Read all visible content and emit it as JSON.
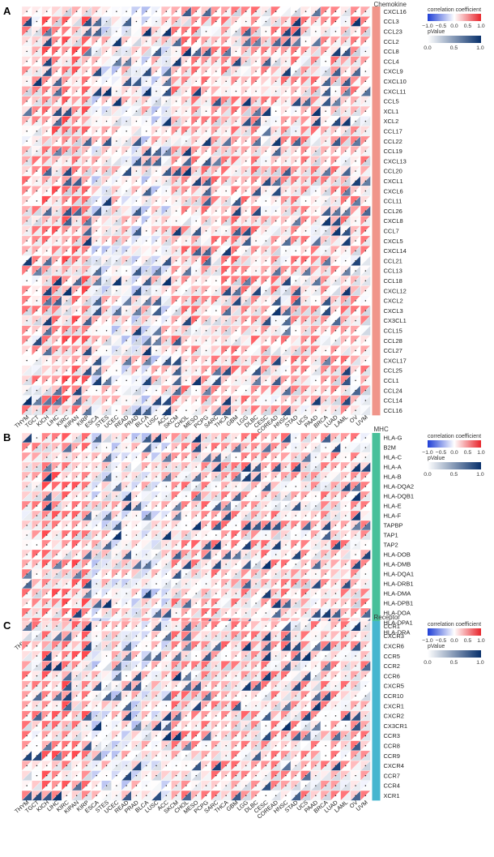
{
  "cancers": [
    "THYM",
    "TGCT",
    "KICH",
    "LIHC",
    "KIRC",
    "KIPAN",
    "KIRP",
    "ESCA",
    "STES",
    "UCEC",
    "READ",
    "PRAD",
    "BLCA",
    "LUSC",
    "ACC",
    "SKCM",
    "CHOL",
    "MESO",
    "PCPG",
    "SARC",
    "THCA",
    "GBM",
    "LGG",
    "DLBC",
    "CESC",
    "COREAD",
    "HNSC",
    "STAD",
    "UCS",
    "PAAD",
    "BRCA",
    "LUAD",
    "LAML",
    "OV",
    "UVM"
  ],
  "legend": {
    "corr_title": "correlation coefficient",
    "corr_ticks": [
      "−1.0",
      "−0.5",
      "0.0",
      "0.5",
      "1.0"
    ],
    "p_title": "pValue",
    "p_ticks": [
      "0.0",
      "0.5",
      "1.0"
    ]
  },
  "colors": {
    "neg": "#1f3fd6",
    "pos": "#e8242b",
    "p_high": "#08306b",
    "chemokine_bar": "#f0958a",
    "mhc_bar": "#48c09a",
    "receptor_bar": "#46b6cf"
  },
  "chart_data": [
    {
      "type": "heatmap",
      "panel": "A",
      "group": "Chemokine",
      "rows": [
        "CXCL16",
        "CCL3",
        "CCL23",
        "CCL2",
        "CCL8",
        "CCL4",
        "CXCL9",
        "CXCL10",
        "CXCL11",
        "CCL5",
        "XCL1",
        "XCL2",
        "CCL17",
        "CCL22",
        "CCL19",
        "CXCL13",
        "CCL20",
        "CXCL1",
        "CXCL6",
        "CCL11",
        "CCL26",
        "CXCL8",
        "CCL7",
        "CXCL5",
        "CXCL14",
        "CCL21",
        "CCL13",
        "CCL18",
        "CXCL12",
        "CXCL2",
        "CXCL3",
        "CX3CL1",
        "CCL15",
        "CCL28",
        "CCL27",
        "CXCL17",
        "CCL25",
        "CCL1",
        "CCL24",
        "CCL14",
        "CCL16"
      ],
      "columns_ref": "cancers",
      "encoding": "upper-left triangle = correlation coefficient (blue-white-red, -1 to 1); lower-right triangle = pValue (white-blue, 0 to 1); dot = significant"
    },
    {
      "type": "heatmap",
      "panel": "B",
      "group": "MHC",
      "rows": [
        "HLA-G",
        "B2M",
        "HLA-C",
        "HLA-A",
        "HLA-B",
        "HLA-DQA2",
        "HLA-DQB1",
        "HLA-E",
        "HLA-F",
        "TAPBP",
        "TAP1",
        "TAP2",
        "HLA-DOB",
        "HLA-DMB",
        "HLA-DQA1",
        "HLA-DRB1",
        "HLA-DMA",
        "HLA-DPB1",
        "HLA-DOA",
        "HLA-DPA1",
        "HLA-DRA"
      ],
      "columns_ref": "cancers",
      "encoding": "upper-left triangle = correlation coefficient; lower-right triangle = pValue; dot = significant"
    },
    {
      "type": "heatmap",
      "panel": "C",
      "group": "Receptor",
      "rows": [
        "CCR1",
        "CXCR3",
        "CXCR6",
        "CCR5",
        "CCR2",
        "CCR6",
        "CXCR5",
        "CCR10",
        "CXCR1",
        "CXCR2",
        "CX3CR1",
        "CCR3",
        "CCR8",
        "CCR9",
        "CXCR4",
        "CCR7",
        "CCR4",
        "XCR1"
      ],
      "columns_ref": "cancers",
      "encoding": "upper-left triangle = correlation coefficient; lower-right triangle = pValue; dot = significant"
    }
  ]
}
